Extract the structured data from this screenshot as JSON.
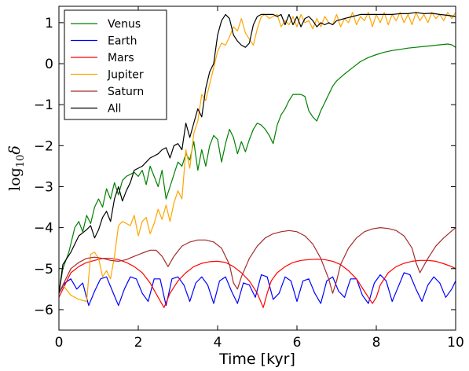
{
  "chart_data": {
    "type": "line",
    "xlabel": "Time [kyr]",
    "ylabel_base": "log",
    "ylabel_sub": "10",
    "ylabel_sym": "δ",
    "xlim": [
      0,
      10
    ],
    "ylim": [
      -6.5,
      1.4
    ],
    "xticks": [
      0,
      2,
      4,
      6,
      8,
      10
    ],
    "yticks": [
      -6,
      -5,
      -4,
      -3,
      -2,
      -1,
      0,
      1
    ],
    "ytick_labels": [
      "−6",
      "−5",
      "−4",
      "−3",
      "−2",
      "−1",
      "0",
      "1"
    ],
    "grid": false,
    "legend_position": "top-left",
    "series": [
      {
        "name": "Venus",
        "color": "#008000",
        "x": [
          0,
          0.1,
          0.25,
          0.4,
          0.5,
          0.6,
          0.7,
          0.8,
          0.9,
          1.0,
          1.1,
          1.2,
          1.3,
          1.4,
          1.5,
          1.6,
          1.7,
          1.8,
          1.9,
          2.0,
          2.1,
          2.2,
          2.3,
          2.4,
          2.5,
          2.6,
          2.7,
          2.8,
          2.9,
          3.0,
          3.1,
          3.2,
          3.3,
          3.4,
          3.5,
          3.6,
          3.7,
          3.8,
          3.9,
          4.0,
          4.1,
          4.2,
          4.3,
          4.4,
          4.5,
          4.6,
          4.7,
          4.8,
          4.9,
          5.0,
          5.1,
          5.2,
          5.3,
          5.4,
          5.5,
          5.6,
          5.7,
          5.8,
          5.9,
          6.0,
          6.1,
          6.2,
          6.3,
          6.4,
          6.5,
          6.6,
          6.7,
          6.8,
          6.9,
          7.0,
          7.2,
          7.4,
          7.6,
          7.8,
          8.0,
          8.2,
          8.4,
          8.6,
          8.8,
          9.0,
          9.2,
          9.4,
          9.6,
          9.8,
          9.9,
          10.0
        ],
        "y": [
          -5.6,
          -5.0,
          -4.6,
          -4.0,
          -3.85,
          -4.1,
          -3.7,
          -3.9,
          -3.5,
          -3.3,
          -3.5,
          -3.05,
          -3.3,
          -2.9,
          -3.2,
          -2.85,
          -2.75,
          -2.7,
          -2.65,
          -2.75,
          -2.6,
          -2.95,
          -2.5,
          -2.75,
          -3.0,
          -2.6,
          -3.3,
          -3.0,
          -2.7,
          -2.4,
          -2.5,
          -2.2,
          -2.35,
          -1.9,
          -2.6,
          -2.1,
          -2.5,
          -2.0,
          -1.75,
          -1.85,
          -2.4,
          -1.95,
          -1.6,
          -1.8,
          -2.2,
          -1.9,
          -2.15,
          -1.85,
          -1.6,
          -1.45,
          -1.5,
          -1.6,
          -1.75,
          -1.95,
          -1.5,
          -1.25,
          -1.1,
          -0.9,
          -0.75,
          -0.75,
          -0.75,
          -0.8,
          -1.15,
          -1.3,
          -1.4,
          -1.15,
          -0.95,
          -0.75,
          -0.55,
          -0.42,
          -0.25,
          -0.1,
          0.05,
          0.15,
          0.22,
          0.28,
          0.32,
          0.35,
          0.38,
          0.4,
          0.42,
          0.44,
          0.46,
          0.48,
          0.46,
          0.4
        ]
      },
      {
        "name": "Earth",
        "color": "#0000ff",
        "x": [
          0,
          0.15,
          0.3,
          0.45,
          0.6,
          0.75,
          0.9,
          1.05,
          1.2,
          1.35,
          1.5,
          1.65,
          1.8,
          1.95,
          2.1,
          2.25,
          2.4,
          2.55,
          2.7,
          2.85,
          3.0,
          3.15,
          3.3,
          3.45,
          3.6,
          3.75,
          3.9,
          4.05,
          4.2,
          4.35,
          4.5,
          4.65,
          4.8,
          4.95,
          5.1,
          5.25,
          5.4,
          5.55,
          5.7,
          5.85,
          6.0,
          6.15,
          6.3,
          6.45,
          6.6,
          6.75,
          6.9,
          7.05,
          7.2,
          7.35,
          7.5,
          7.65,
          7.8,
          7.95,
          8.1,
          8.25,
          8.4,
          8.55,
          8.7,
          8.85,
          9.0,
          9.15,
          9.3,
          9.45,
          9.6,
          9.75,
          9.9,
          10.0
        ],
        "y": [
          -5.6,
          -5.35,
          -5.25,
          -5.5,
          -5.35,
          -5.9,
          -5.55,
          -5.25,
          -5.2,
          -5.55,
          -5.9,
          -5.5,
          -5.2,
          -5.25,
          -5.6,
          -5.8,
          -5.25,
          -5.25,
          -5.9,
          -5.25,
          -5.2,
          -5.4,
          -5.8,
          -5.35,
          -5.2,
          -5.4,
          -5.85,
          -5.3,
          -5.2,
          -5.55,
          -5.85,
          -5.35,
          -5.4,
          -5.7,
          -5.15,
          -5.2,
          -5.75,
          -5.6,
          -5.2,
          -5.3,
          -5.8,
          -5.3,
          -5.25,
          -5.6,
          -5.85,
          -5.3,
          -5.2,
          -5.55,
          -5.7,
          -5.25,
          -5.25,
          -5.65,
          -5.85,
          -5.35,
          -5.15,
          -5.3,
          -5.8,
          -5.45,
          -5.1,
          -5.15,
          -5.5,
          -5.8,
          -5.4,
          -5.2,
          -5.35,
          -5.7,
          -5.5,
          -5.3
        ]
      },
      {
        "name": "Mars",
        "color": "#ff0000",
        "x": [
          0,
          0.15,
          0.3,
          0.5,
          0.7,
          0.9,
          1.1,
          1.3,
          1.5,
          1.7,
          1.9,
          2.1,
          2.3,
          2.5,
          2.65,
          2.8,
          3.0,
          3.2,
          3.4,
          3.6,
          3.8,
          4.0,
          4.2,
          4.4,
          4.6,
          4.8,
          5.0,
          5.15,
          5.25,
          5.35,
          5.5,
          5.7,
          5.9,
          6.1,
          6.3,
          6.5,
          6.7,
          6.9,
          7.1,
          7.3,
          7.5,
          7.7,
          7.9,
          8.0,
          8.1,
          8.3,
          8.5,
          8.7,
          8.9,
          9.1,
          9.3,
          9.5,
          9.7,
          9.9,
          10.0
        ],
        "y": [
          -5.7,
          -5.4,
          -5.1,
          -4.95,
          -4.85,
          -4.8,
          -4.75,
          -4.75,
          -4.78,
          -4.85,
          -4.95,
          -5.1,
          -5.35,
          -5.7,
          -5.95,
          -5.6,
          -5.3,
          -5.1,
          -4.95,
          -4.87,
          -4.83,
          -4.82,
          -4.85,
          -4.95,
          -5.1,
          -5.3,
          -5.6,
          -5.95,
          -5.6,
          -5.3,
          -5.1,
          -4.95,
          -4.85,
          -4.8,
          -4.78,
          -4.77,
          -4.78,
          -4.82,
          -4.9,
          -5.05,
          -5.25,
          -5.55,
          -5.85,
          -5.7,
          -5.4,
          -5.1,
          -4.95,
          -4.87,
          -4.82,
          -4.8,
          -4.8,
          -4.82,
          -4.88,
          -4.95,
          -5.0
        ]
      },
      {
        "name": "Jupiter",
        "color": "#ffa500",
        "x": [
          0,
          0.1,
          0.3,
          0.5,
          0.7,
          0.8,
          0.9,
          1.0,
          1.1,
          1.2,
          1.3,
          1.4,
          1.5,
          1.6,
          1.7,
          1.8,
          1.9,
          2.0,
          2.1,
          2.2,
          2.3,
          2.4,
          2.5,
          2.6,
          2.7,
          2.8,
          2.9,
          3.0,
          3.1,
          3.2,
          3.3,
          3.4,
          3.5,
          3.6,
          3.7,
          3.8,
          3.9,
          4.0,
          4.1,
          4.2,
          4.3,
          4.4,
          4.5,
          4.6,
          4.7,
          4.8,
          4.9,
          5.0,
          5.1,
          5.2,
          5.3,
          5.4,
          5.5,
          5.6,
          5.7,
          5.8,
          5.9,
          6.0,
          6.1,
          6.2,
          6.3,
          6.4,
          6.5,
          6.6,
          6.7,
          6.8,
          6.9,
          7.0,
          7.1,
          7.2,
          7.3,
          7.4,
          7.5,
          7.6,
          7.7,
          7.8,
          7.9,
          8.0,
          8.1,
          8.2,
          8.3,
          8.4,
          8.5,
          8.6,
          8.7,
          8.8,
          8.9,
          9.0,
          9.1,
          9.2,
          9.3,
          9.4,
          9.5,
          9.6,
          9.7,
          9.8,
          9.9,
          10.0
        ],
        "y": [
          -5.6,
          -5.4,
          -5.65,
          -5.75,
          -5.8,
          -4.65,
          -4.6,
          -4.75,
          -5.2,
          -5.05,
          -5.25,
          -4.7,
          -3.95,
          -3.85,
          -3.9,
          -3.95,
          -3.7,
          -4.2,
          -3.85,
          -3.75,
          -4.15,
          -3.9,
          -3.55,
          -3.8,
          -3.45,
          -3.85,
          -3.4,
          -3.1,
          -3.3,
          -2.1,
          -2.55,
          -1.7,
          -1.4,
          -0.75,
          -0.9,
          -0.5,
          -0.1,
          0.3,
          0.5,
          0.45,
          0.65,
          0.9,
          0.8,
          1.1,
          0.75,
          0.6,
          0.45,
          0.85,
          1.15,
          1.2,
          1.1,
          1.15,
          1.2,
          0.9,
          1.05,
          0.95,
          1.15,
          0.9,
          1.2,
          1.0,
          1.05,
          0.85,
          1.1,
          0.9,
          1.15,
          1.0,
          0.95,
          1.2,
          0.9,
          1.1,
          1.0,
          1.25,
          0.95,
          1.15,
          1.05,
          1.25,
          0.9,
          1.2,
          1.0,
          1.25,
          0.95,
          1.2,
          1.05,
          1.25,
          1.0,
          1.2,
          0.95,
          1.25,
          1.05,
          1.2,
          1.0,
          1.25,
          1.1,
          1.2,
          1.05,
          1.25,
          1.1,
          1.25
        ]
      },
      {
        "name": "Saturn",
        "color": "#a52a2a",
        "x": [
          0,
          0.15,
          0.3,
          0.5,
          0.7,
          0.9,
          1.1,
          1.3,
          1.5,
          1.7,
          1.9,
          2.1,
          2.3,
          2.45,
          2.6,
          2.75,
          2.9,
          3.1,
          3.3,
          3.5,
          3.7,
          3.9,
          4.1,
          4.3,
          4.4,
          4.5,
          4.6,
          4.8,
          5.0,
          5.2,
          5.4,
          5.6,
          5.8,
          6.0,
          6.2,
          6.4,
          6.6,
          6.8,
          6.9,
          7.0,
          7.1,
          7.3,
          7.5,
          7.7,
          7.9,
          8.1,
          8.3,
          8.5,
          8.7,
          8.9,
          9.0,
          9.1,
          9.3,
          9.5,
          9.7,
          9.9,
          10.0
        ],
        "y": [
          -5.6,
          -5.3,
          -5.0,
          -4.85,
          -4.75,
          -4.72,
          -4.75,
          -4.8,
          -4.82,
          -4.78,
          -4.7,
          -4.62,
          -4.55,
          -4.55,
          -4.7,
          -4.95,
          -4.7,
          -4.45,
          -4.35,
          -4.3,
          -4.3,
          -4.35,
          -4.5,
          -4.9,
          -5.35,
          -5.5,
          -5.2,
          -4.75,
          -4.45,
          -4.25,
          -4.15,
          -4.1,
          -4.07,
          -4.1,
          -4.2,
          -4.4,
          -4.75,
          -5.25,
          -5.6,
          -5.3,
          -4.9,
          -4.5,
          -4.25,
          -4.1,
          -4.03,
          -4.0,
          -4.02,
          -4.07,
          -4.2,
          -4.5,
          -4.85,
          -5.1,
          -4.75,
          -4.45,
          -4.25,
          -4.08,
          -4.0
        ]
      },
      {
        "name": "All",
        "color": "#000000",
        "x": [
          0,
          0.1,
          0.3,
          0.5,
          0.7,
          0.8,
          0.9,
          1.0,
          1.1,
          1.2,
          1.3,
          1.4,
          1.5,
          1.6,
          1.7,
          1.8,
          1.9,
          2.0,
          2.1,
          2.2,
          2.3,
          2.4,
          2.5,
          2.6,
          2.7,
          2.8,
          2.9,
          3.0,
          3.1,
          3.2,
          3.3,
          3.4,
          3.5,
          3.6,
          3.7,
          3.8,
          3.9,
          4.0,
          4.1,
          4.2,
          4.3,
          4.4,
          4.5,
          4.6,
          4.7,
          4.8,
          4.9,
          5.0,
          5.1,
          5.2,
          5.3,
          5.4,
          5.5,
          5.6,
          5.7,
          5.8,
          5.9,
          6.0,
          6.1,
          6.2,
          6.3,
          6.4,
          6.5,
          6.6,
          6.7,
          6.8,
          6.9,
          7.0,
          7.2,
          7.4,
          7.6,
          7.8,
          8.0,
          8.2,
          8.4,
          8.6,
          8.8,
          9.0,
          9.2,
          9.4,
          9.6,
          9.8,
          10.0
        ],
        "y": [
          -5.6,
          -4.9,
          -4.6,
          -4.2,
          -4.05,
          -3.95,
          -4.25,
          -4.05,
          -3.75,
          -3.6,
          -3.85,
          -3.3,
          -3.0,
          -3.35,
          -3.1,
          -2.9,
          -2.6,
          -2.55,
          -2.5,
          -2.4,
          -2.3,
          -2.25,
          -2.2,
          -2.1,
          -2.05,
          -2.3,
          -2.0,
          -1.95,
          -2.1,
          -1.45,
          -1.8,
          -1.45,
          -1.1,
          -1.3,
          -0.6,
          -0.2,
          0.0,
          0.7,
          1.05,
          1.2,
          1.1,
          0.7,
          0.55,
          0.45,
          0.4,
          0.5,
          0.95,
          1.15,
          1.2,
          1.2,
          1.2,
          1.2,
          1.15,
          1.2,
          0.95,
          1.2,
          0.95,
          1.15,
          0.9,
          1.1,
          1.15,
          1.05,
          0.9,
          1.0,
          0.95,
          1.0,
          0.95,
          1.05,
          1.1,
          1.15,
          1.2,
          1.2,
          1.2,
          1.2,
          1.2,
          1.22,
          1.22,
          1.25,
          1.22,
          1.23,
          1.2,
          1.18,
          1.15
        ]
      }
    ]
  }
}
